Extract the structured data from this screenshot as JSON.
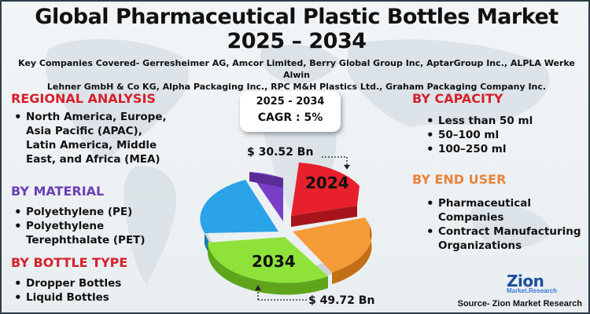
{
  "header": {
    "title_line1": "Global Pharmaceutical Plastic Bottles Market",
    "title_line2": "2025 – 2034",
    "companies_line1": "Key Companies Covered- Gerresheimer AG, Amcor Limited, Berry Global Group Inc, AptarGroup Inc., ALPLA Werke Alwin",
    "companies_line2": "Lehner GmbH & Co KG, Alpha Packaging Inc., RPC M&H Plastics Ltd., Graham Packaging Company Inc."
  },
  "regional": {
    "heading": "REGIONAL ANALYSIS",
    "items": [
      "North America, Europe,",
      "Asia Pacific (APAC),",
      "Latin America, Middle",
      "East, and Africa (MEA)"
    ]
  },
  "material": {
    "heading": "BY MATERIAL",
    "items": [
      "Polyethylene (PE)",
      "Polyethylene",
      "Terephthalate (PET)"
    ]
  },
  "bottle_type": {
    "heading": "BY BOTTLE TYPE",
    "items": [
      "Dropper Bottles",
      "Liquid Bottles"
    ]
  },
  "capacity": {
    "heading": "BY CAPACITY",
    "items": [
      "Less than 50 ml",
      "50–100 ml",
      "100–250 ml"
    ]
  },
  "end_user": {
    "heading": "BY END USER",
    "items": [
      "Pharmaceutical",
      "Companies",
      "Contract Manufacturing",
      "Organizations"
    ]
  },
  "forecast": {
    "period": "2025 - 2034",
    "cagr": "CAGR : 5%"
  },
  "pie": {
    "label_2024": "2024",
    "label_2034": "2034",
    "value_2024": "$ 30.52 Bn",
    "value_2034": "$ 49.72 Bn",
    "colors": {
      "red": "#e8202b",
      "orange": "#f59b38",
      "green": "#8ee23a",
      "blue": "#2aa3e8",
      "purple": "#7a3fc6"
    }
  },
  "logo": {
    "name": "Zion",
    "sub": "Market.Research"
  },
  "source": "Source- Zion Market Research"
}
